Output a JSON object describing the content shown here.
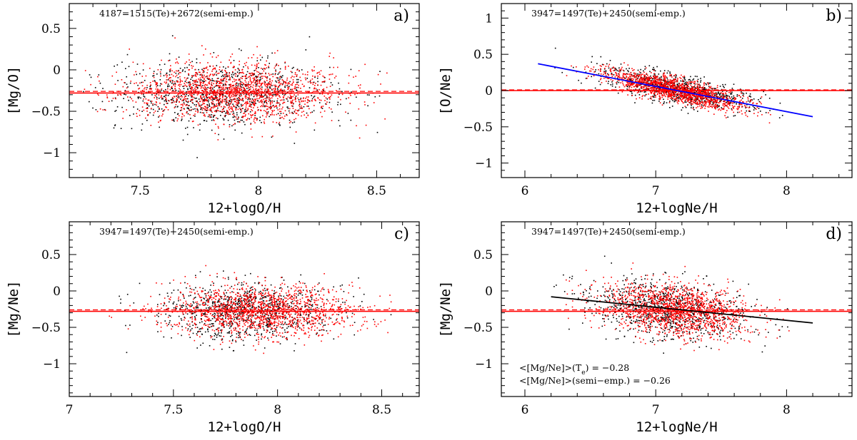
{
  "chart_data": [
    {
      "type": "scatter",
      "panel_label": "a)",
      "annotation": "4187=1515(Te)+2672(semi-emp.)",
      "xlabel": "12+logO/H",
      "ylabel": "[Mg/O]",
      "xlim": [
        7.2,
        8.68
      ],
      "ylim": [
        -1.3,
        0.8
      ],
      "xticks": [
        7.5,
        8,
        8.5
      ],
      "yticks": [
        0.5,
        0,
        -0.5,
        -1
      ],
      "xtick_labels": [
        "7.5",
        "8",
        "8.5"
      ],
      "ytick_labels": [
        "0.5",
        "0",
        "−0.5",
        "−1"
      ],
      "series": [
        {
          "color": "#000000",
          "count": 1515,
          "x_range": [
            7.25,
            8.65
          ],
          "x_center": 7.85,
          "x_spread": 0.22,
          "y_mean": -0.28,
          "y_spread": 0.2
        },
        {
          "color": "#ff0000",
          "count": 2672,
          "x_range": [
            7.25,
            8.65
          ],
          "x_center": 7.9,
          "x_spread": 0.22,
          "y_mean": -0.26,
          "y_spread": 0.18
        }
      ],
      "hlines": [
        {
          "y": -0.28,
          "color": "#ff0000",
          "style": "solid"
        },
        {
          "y": -0.26,
          "color": "#ff0000",
          "style": "dashed"
        }
      ]
    },
    {
      "type": "scatter",
      "panel_label": "b)",
      "annotation": "3947=1497(Te)+2450(semi-emp.)",
      "xlabel": "12+logNe/H",
      "ylabel": "[O/Ne]",
      "xlim": [
        5.82,
        8.5
      ],
      "ylim": [
        -1.2,
        1.2
      ],
      "xticks": [
        6,
        7,
        8
      ],
      "yticks": [
        1,
        0.5,
        0,
        -0.5,
        -1
      ],
      "xtick_labels": [
        "6",
        "7",
        "8"
      ],
      "ytick_labels": [
        "1",
        "0.5",
        "0",
        "−0.5",
        "−1"
      ],
      "series": [
        {
          "color": "#000000",
          "count": 1497,
          "x_range": [
            6.2,
            8.2
          ],
          "x_center": 7.15,
          "x_spread": 0.28,
          "trend": [
            0.37,
            -0.34
          ],
          "y_spread": 0.1
        },
        {
          "color": "#ff0000",
          "count": 2450,
          "x_range": [
            6.3,
            8.0
          ],
          "x_center": 7.15,
          "x_spread": 0.26,
          "trend": [
            0.37,
            -0.34
          ],
          "y_spread": 0.08
        }
      ],
      "hlines": [
        {
          "y": 0.0,
          "color": "#ff0000",
          "style": "solid"
        },
        {
          "y": 0.01,
          "color": "#ff0000",
          "style": "dashed"
        }
      ],
      "fit_line": {
        "x": [
          6.1,
          8.2
        ],
        "y": [
          0.37,
          -0.36
        ],
        "color": "#0000ff"
      }
    },
    {
      "type": "scatter",
      "panel_label": "c)",
      "annotation": "3947=1497(Te)+2450(semi-emp.)",
      "xlabel": "12+logO/H",
      "ylabel": "[Mg/Ne]",
      "xlim": [
        7.0,
        8.68
      ],
      "ylim": [
        -1.45,
        0.95
      ],
      "xticks": [
        7,
        7.5,
        8,
        8.5
      ],
      "yticks": [
        0.5,
        0,
        -0.5,
        -1
      ],
      "xtick_labels": [
        "7",
        "7.5",
        "8",
        "8.5"
      ],
      "ytick_labels": [
        "0.5",
        "0",
        "−0.5",
        "−1"
      ],
      "series": [
        {
          "color": "#000000",
          "count": 1497,
          "x_range": [
            7.1,
            8.6
          ],
          "x_center": 7.85,
          "x_spread": 0.2,
          "y_mean": -0.28,
          "y_spread": 0.2
        },
        {
          "color": "#ff0000",
          "count": 2450,
          "x_range": [
            7.1,
            8.6
          ],
          "x_center": 7.92,
          "x_spread": 0.22,
          "y_mean": -0.26,
          "y_spread": 0.18
        }
      ],
      "hlines": [
        {
          "y": -0.28,
          "color": "#ff0000",
          "style": "solid"
        },
        {
          "y": -0.26,
          "color": "#ff0000",
          "style": "dashed"
        }
      ]
    },
    {
      "type": "scatter",
      "panel_label": "d)",
      "annotation": "3947=1497(Te)+2450(semi-emp.)",
      "xlabel": "12+logNe/H",
      "ylabel": "[Mg/Ne]",
      "xlim": [
        5.82,
        8.5
      ],
      "ylim": [
        -1.45,
        0.95
      ],
      "xticks": [
        6,
        7,
        8
      ],
      "yticks": [
        0.5,
        0,
        -0.5,
        -1
      ],
      "xtick_labels": [
        "6",
        "7",
        "8"
      ],
      "ytick_labels": [
        "0.5",
        "0",
        "−0.5",
        "−1"
      ],
      "series": [
        {
          "color": "#000000",
          "count": 1497,
          "x_range": [
            6.2,
            8.2
          ],
          "x_center": 7.1,
          "x_spread": 0.3,
          "trend": [
            -0.1,
            -0.44
          ],
          "y_spread": 0.2
        },
        {
          "color": "#ff0000",
          "count": 2450,
          "x_range": [
            6.3,
            8.1
          ],
          "x_center": 7.15,
          "x_spread": 0.28,
          "trend": [
            -0.1,
            -0.44
          ],
          "y_spread": 0.18
        }
      ],
      "hlines": [
        {
          "y": -0.28,
          "color": "#ff0000",
          "style": "solid"
        },
        {
          "y": -0.26,
          "color": "#ff0000",
          "style": "dashed"
        }
      ],
      "fit_line": {
        "x": [
          6.2,
          8.2
        ],
        "y": [
          -0.08,
          -0.44
        ],
        "color": "#000000"
      },
      "stats": [
        {
          "prefix": "<[Mg/Ne]>(T",
          "sub": "e",
          "suffix": ") = −0.28"
        },
        {
          "prefix": "<[Mg/Ne]>(semi−emp.) = −0.26",
          "sub": "",
          "suffix": ""
        }
      ]
    }
  ]
}
